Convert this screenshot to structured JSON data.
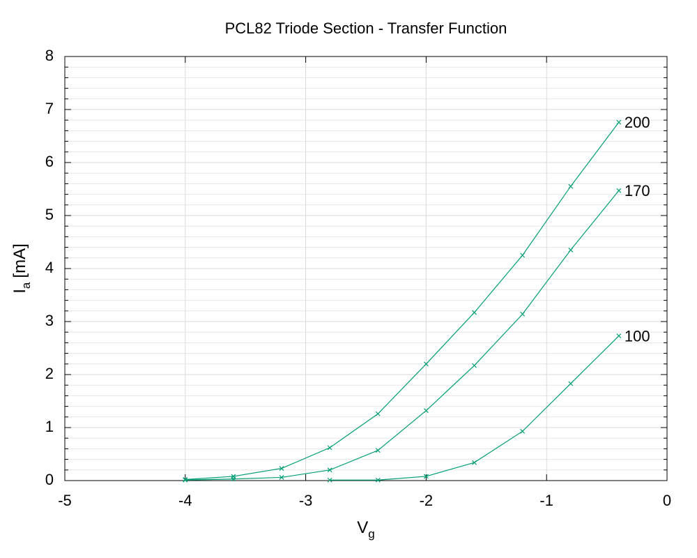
{
  "chart_data": {
    "type": "line",
    "title": "PCL82 Triode Section - Transfer Function",
    "xlabel": "V",
    "xlabel_sub": "g",
    "ylabel": "I",
    "ylabel_sub": "a",
    "ylabel_unit": "[mA]",
    "x": [
      -4,
      -3.6,
      -3.2,
      -2.8,
      -2.4,
      -2,
      -1.6,
      -1.2,
      -0.8,
      -0.4
    ],
    "series": [
      {
        "name": "200",
        "color": "#009e73",
        "values": [
          0.02,
          0.08,
          0.23,
          0.62,
          1.26,
          2.2,
          3.17,
          4.25,
          5.55,
          6.76
        ]
      },
      {
        "name": "170",
        "color": "#009e73",
        "values": [
          0.01,
          0.03,
          0.06,
          0.2,
          0.57,
          1.32,
          2.17,
          3.14,
          4.35,
          5.47
        ]
      },
      {
        "name": "100",
        "color": "#009e73",
        "values": [
          null,
          null,
          null,
          0.01,
          0.01,
          0.08,
          0.34,
          0.93,
          1.83,
          2.73
        ]
      }
    ],
    "xlim": [
      -5,
      0
    ],
    "xticks": [
      -5,
      -4,
      -3,
      -2,
      -1,
      0
    ],
    "ylim": [
      0,
      8
    ],
    "yticks": [
      0,
      1,
      2,
      3,
      4,
      5,
      6,
      7,
      8
    ],
    "y_minor_divisions": 5,
    "grid": true
  }
}
